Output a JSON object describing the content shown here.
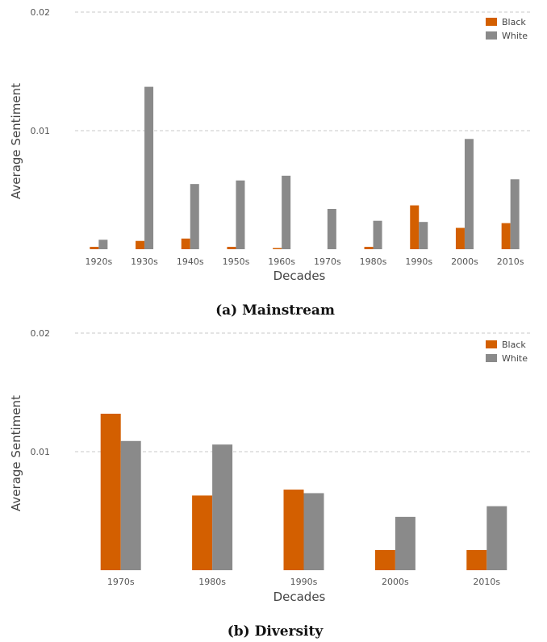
{
  "colors": {
    "Black": "#d35f00",
    "White": "#8a8a8a"
  },
  "chart_data": [
    {
      "type": "bar",
      "caption": "(a) Mainstream",
      "xlabel": "Decades",
      "ylabel": "Average Sentiment",
      "ylim": [
        0,
        0.02
      ],
      "yticks": [
        0.01,
        0.02
      ],
      "ytick_labels": [
        "0.01",
        "0.02"
      ],
      "grid": true,
      "legend_position": "top-right",
      "categories": [
        "1920s",
        "1930s",
        "1940s",
        "1950s",
        "1960s",
        "1970s",
        "1980s",
        "1990s",
        "2000s",
        "2010s"
      ],
      "series": [
        {
          "name": "Black",
          "values": [
            0.0002,
            0.0007,
            0.0009,
            0.0002,
            0.0001,
            0.0,
            0.0002,
            0.0037,
            0.0018,
            0.0022
          ]
        },
        {
          "name": "White",
          "values": [
            0.0008,
            0.0137,
            0.0055,
            0.0058,
            0.0062,
            0.0034,
            0.0024,
            0.0023,
            0.0093,
            0.0059
          ]
        }
      ]
    },
    {
      "type": "bar",
      "caption": "(b) Diversity",
      "xlabel": "Decades",
      "ylabel": "Average Sentiment",
      "ylim": [
        0,
        0.02
      ],
      "yticks": [
        0.01,
        0.02
      ],
      "ytick_labels": [
        "0.01",
        "0.02"
      ],
      "grid": true,
      "legend_position": "top-right",
      "categories": [
        "1970s",
        "1980s",
        "1990s",
        "2000s",
        "2010s"
      ],
      "series": [
        {
          "name": "Black",
          "values": [
            0.0132,
            0.0063,
            0.0068,
            0.0017,
            0.0017
          ]
        },
        {
          "name": "White",
          "values": [
            0.0109,
            0.0106,
            0.0065,
            0.0045,
            0.0054
          ]
        }
      ]
    }
  ]
}
